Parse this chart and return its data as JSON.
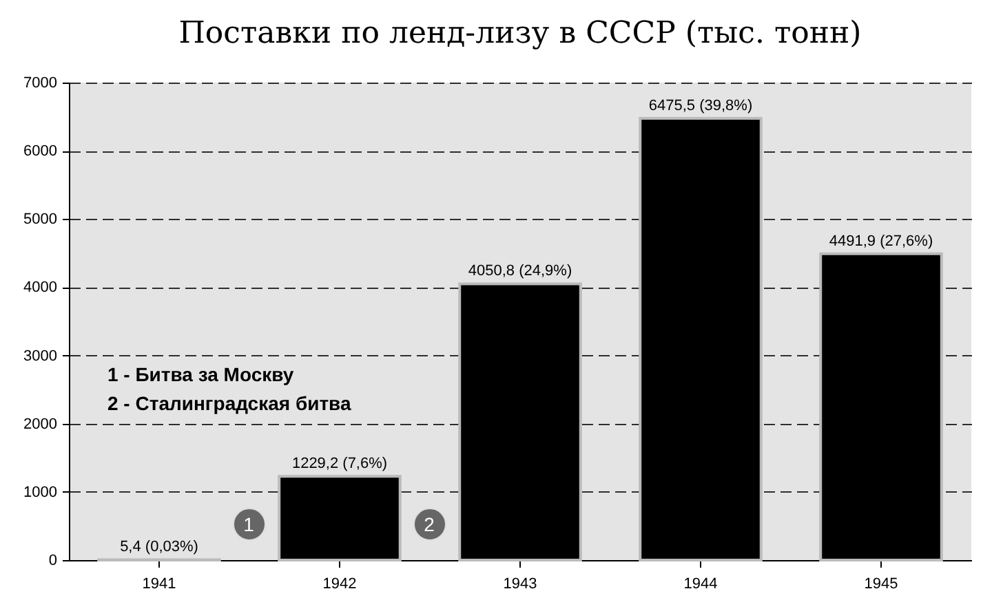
{
  "chart_data": {
    "type": "bar",
    "title": "Поставки по ленд-лизу в СССР (тыс. тонн)",
    "categories": [
      "1941",
      "1942",
      "1943",
      "1944",
      "1945"
    ],
    "values": [
      5.4,
      1229.2,
      4050.8,
      6475.5,
      4491.9
    ],
    "value_labels": [
      "5,4 (0,03%)",
      "1229,2 (7,6%)",
      "4050,8 (24,9%)",
      "6475,5 (39,8%)",
      "4491,9 (27,6%)"
    ],
    "color": "#000000",
    "ylim": [
      0,
      7000
    ],
    "yticks": [
      0,
      1000,
      2000,
      3000,
      4000,
      5000,
      6000,
      7000
    ],
    "grid": "y",
    "line_style": "dashed",
    "annotations": [
      "1 - Битва за Москву",
      "2 - Сталинградская битва",
      "1",
      "2"
    ]
  }
}
